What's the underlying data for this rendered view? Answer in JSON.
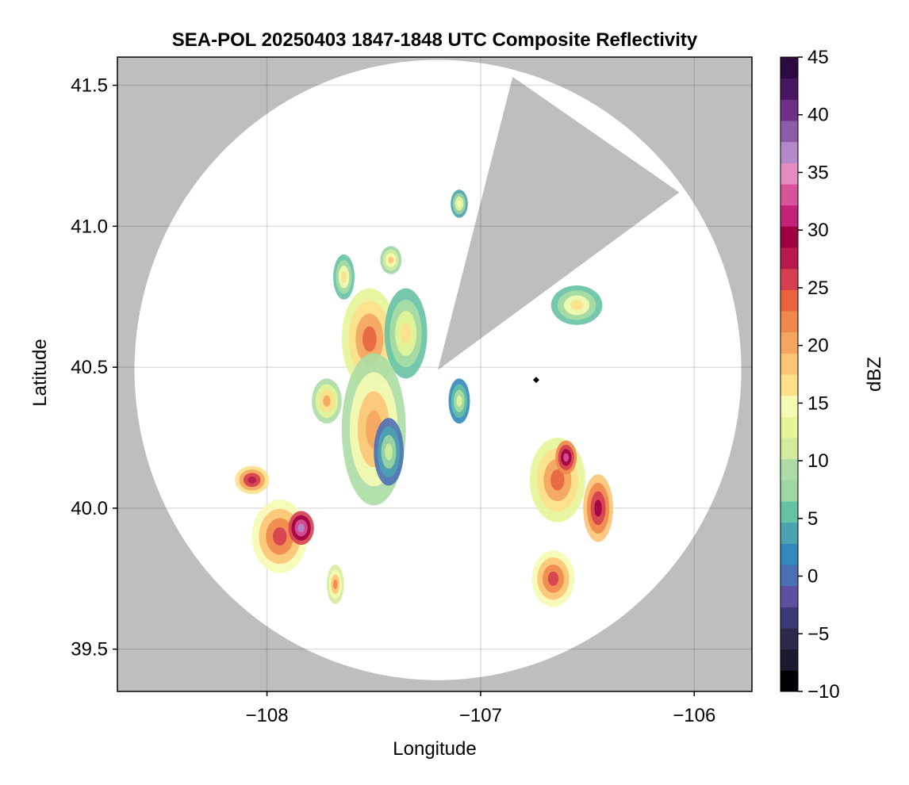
{
  "chart_data": {
    "type": "heatmap",
    "title": "SEA-POL 20250403 1847-1848 UTC Composite Reflectivity",
    "xlabel": "Longitude",
    "ylabel": "Latitude",
    "xlim": [
      -108.7,
      -105.73
    ],
    "ylim": [
      39.35,
      41.6
    ],
    "xticks": [
      -108,
      -107,
      -106
    ],
    "xtick_labels": [
      "−108",
      "−107",
      "−106"
    ],
    "yticks": [
      39.5,
      40.0,
      40.5,
      41.0,
      41.5
    ],
    "ytick_labels": [
      "39.5",
      "40.0",
      "40.5",
      "41.0",
      "41.5"
    ],
    "grid": true,
    "background_color": "#bebebe",
    "radar_coverage": {
      "center": [
        -107.2,
        40.49
      ],
      "radius_lon": 1.42,
      "radius_lat": 1.1,
      "color": "#ffffff",
      "gap_sector_points": [
        [
          -107.2,
          40.49
        ],
        [
          -106.85,
          41.53
        ],
        [
          -106.07,
          41.12
        ]
      ]
    },
    "radar_site_marker": [
      -106.74,
      40.455
    ],
    "colorbar": {
      "label": "dBZ",
      "min": -10,
      "max": 45,
      "ticks": [
        -10,
        -5,
        0,
        5,
        10,
        15,
        20,
        25,
        30,
        35,
        40,
        45
      ],
      "tick_labels": [
        "−10",
        "−5",
        "0",
        "5",
        "10",
        "15",
        "20",
        "25",
        "30",
        "35",
        "40",
        "45"
      ],
      "colors": [
        "#000004",
        "#1a1a2e",
        "#2b2a4c",
        "#3d3a7a",
        "#5e4fa2",
        "#4b6fb5",
        "#3288bd",
        "#4aa3b0",
        "#66c2a5",
        "#9ed6a4",
        "#abdda4",
        "#d1ec9c",
        "#e6f598",
        "#f6fbb3",
        "#fee08b",
        "#fdc474",
        "#f4a55e",
        "#f0884d",
        "#e8643f",
        "#d53e4f",
        "#b7184e",
        "#9e0142",
        "#c2227a",
        "#d9539a",
        "#e58cc0",
        "#b389c9",
        "#8e5aa8",
        "#6e2f86",
        "#4a1560",
        "#2d0a3f"
      ]
    },
    "echo_cells": [
      {
        "lon": -107.52,
        "lat": 40.6,
        "rlon": 0.13,
        "rlat": 0.18,
        "dbz": 20
      },
      {
        "lon": -107.35,
        "lat": 40.62,
        "rlon": 0.1,
        "rlat": 0.16,
        "dbz": 13
      },
      {
        "lon": -107.5,
        "lat": 40.28,
        "rlon": 0.15,
        "rlat": 0.27,
        "dbz": 18
      },
      {
        "lon": -107.43,
        "lat": 40.2,
        "rlon": 0.07,
        "rlat": 0.12,
        "dbz": 8
      },
      {
        "lon": -107.94,
        "lat": 39.9,
        "rlon": 0.13,
        "rlat": 0.13,
        "dbz": 22
      },
      {
        "lon": -107.84,
        "lat": 39.93,
        "rlon": 0.06,
        "rlat": 0.06,
        "dbz": 33
      },
      {
        "lon": -108.07,
        "lat": 40.1,
        "rlon": 0.08,
        "rlat": 0.05,
        "dbz": 25
      },
      {
        "lon": -106.64,
        "lat": 40.1,
        "rlon": 0.13,
        "rlat": 0.15,
        "dbz": 20
      },
      {
        "lon": -106.6,
        "lat": 40.18,
        "rlon": 0.05,
        "rlat": 0.06,
        "dbz": 30
      },
      {
        "lon": -106.45,
        "lat": 40.0,
        "rlon": 0.07,
        "rlat": 0.12,
        "dbz": 26
      },
      {
        "lon": -106.66,
        "lat": 39.75,
        "rlon": 0.1,
        "rlat": 0.1,
        "dbz": 22
      },
      {
        "lon": -107.1,
        "lat": 40.38,
        "rlon": 0.05,
        "rlat": 0.08,
        "dbz": 10
      },
      {
        "lon": -107.72,
        "lat": 40.38,
        "rlon": 0.07,
        "rlat": 0.08,
        "dbz": 17
      },
      {
        "lon": -107.64,
        "lat": 40.82,
        "rlon": 0.05,
        "rlat": 0.08,
        "dbz": 14
      },
      {
        "lon": -107.42,
        "lat": 40.88,
        "rlon": 0.05,
        "rlat": 0.05,
        "dbz": 15
      },
      {
        "lon": -107.1,
        "lat": 41.08,
        "rlon": 0.04,
        "rlat": 0.05,
        "dbz": 12
      },
      {
        "lon": -107.68,
        "lat": 39.73,
        "rlon": 0.04,
        "rlat": 0.07,
        "dbz": 19
      },
      {
        "lon": -106.55,
        "lat": 40.72,
        "rlon": 0.12,
        "rlat": 0.07,
        "dbz": 14
      }
    ]
  }
}
